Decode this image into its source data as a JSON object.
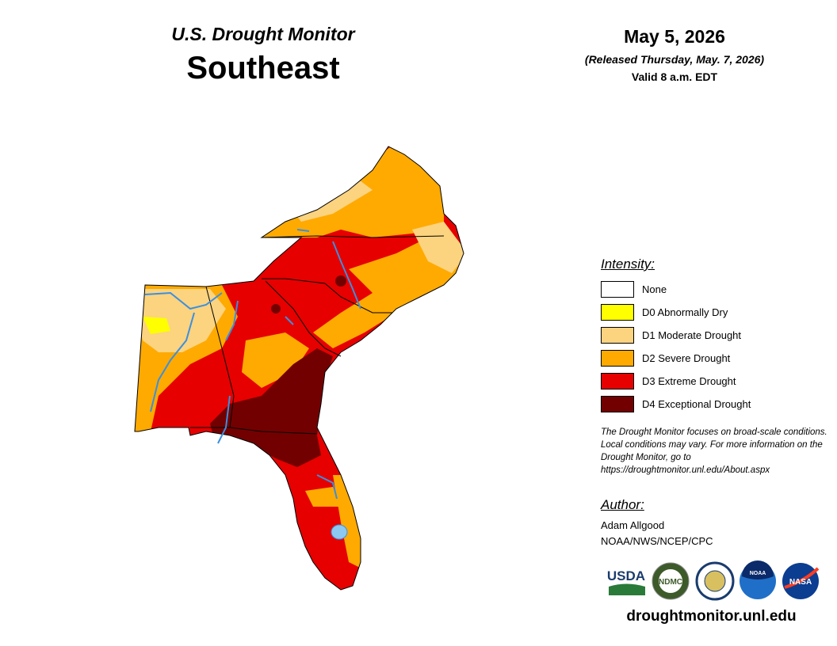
{
  "header": {
    "subtitle": "U.S. Drought Monitor",
    "title": "Southeast"
  },
  "date": {
    "date": "May 5, 2026",
    "released": "(Released Thursday, May. 7, 2026)",
    "valid": "Valid 8 a.m. EDT"
  },
  "legend": {
    "title": "Intensity:",
    "items": [
      {
        "label": "None",
        "color": "#ffffff"
      },
      {
        "label": "D0 Abnormally Dry",
        "color": "#ffff00"
      },
      {
        "label": "D1 Moderate Drought",
        "color": "#fcd37f"
      },
      {
        "label": "D2 Severe Drought",
        "color": "#ffaa00"
      },
      {
        "label": "D3 Extreme Drought",
        "color": "#e60000"
      },
      {
        "label": "D4 Exceptional Drought",
        "color": "#730000"
      }
    ]
  },
  "note": "The Drought Monitor focuses on broad-scale conditions. Local conditions may vary. For more information on the Drought Monitor, go to https://droughtmonitor.unl.edu/About.aspx",
  "author": {
    "title": "Author:",
    "name": "Adam Allgood",
    "org": "NOAA/NWS/NCEP/CPC"
  },
  "logos": [
    "USDA",
    "NDMC",
    "NOAA",
    "NASA"
  ],
  "footer": "droughtmonitor.unl.edu"
}
